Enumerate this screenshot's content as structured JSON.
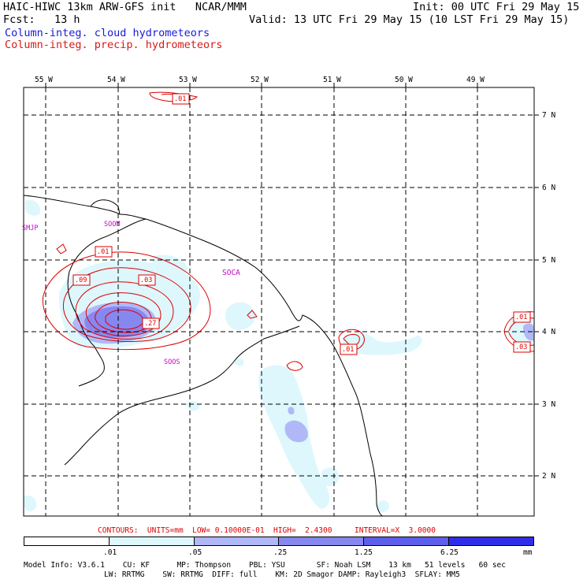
{
  "header": {
    "title": "HAIC-HIWC 13km ARW-GFS init   NCAR/MMM",
    "fcst": "Fcst:   13 h",
    "init": "Init: 00 UTC Fri 29 May 15",
    "valid": "Valid: 13 UTC Fri 29 May 15 (10 LST Fri 29 May 15)",
    "field_cloud": "Column-integ. cloud hydrometeors",
    "field_precip": "Column-integ. precip. hydrometeors",
    "cloud_color": "#0000dd",
    "precip_color": "#dd0000"
  },
  "map": {
    "lon_labels": [
      "55 W",
      "54 W",
      "53 W",
      "52 W",
      "51 W",
      "50 W",
      "49 W"
    ],
    "lat_labels": [
      "7 N",
      "6 N",
      "5 N",
      "4 N",
      "3 N",
      "2 N"
    ],
    "stations": [
      "SMJP",
      "SOOM",
      "SOCA",
      "SOOS"
    ],
    "contour_labels": [
      ".01",
      ".01",
      ".09",
      ".03",
      ".27",
      ".01",
      ".01",
      ".03"
    ]
  },
  "footer": {
    "contours": "CONTOURS:  UNITS=mm  LOW= 0.10000E-01  HIGH=  2.4300     INTERVAL=X  3.0000",
    "colorbar_ticks": [
      ".01",
      ".05",
      ".25",
      "1.25",
      "6.25"
    ],
    "colorbar_units": "mm",
    "colorbar_colors": [
      "#ffffff",
      "#ddf7fd",
      "#b0b8f7",
      "#8787f0",
      "#5e5eec",
      "#2e2eea"
    ],
    "model_info_1": "Model Info: V3.6.1    CU: KF      MP: Thompson    PBL: YSU       SF: Noah LSM    13 km   51 levels   60 sec",
    "model_info_2": "LW: RRTMG    SW: RRTMG  DIFF: full    KM: 2D Smagor DAMP: Rayleigh3  SFLAY: MM5"
  }
}
